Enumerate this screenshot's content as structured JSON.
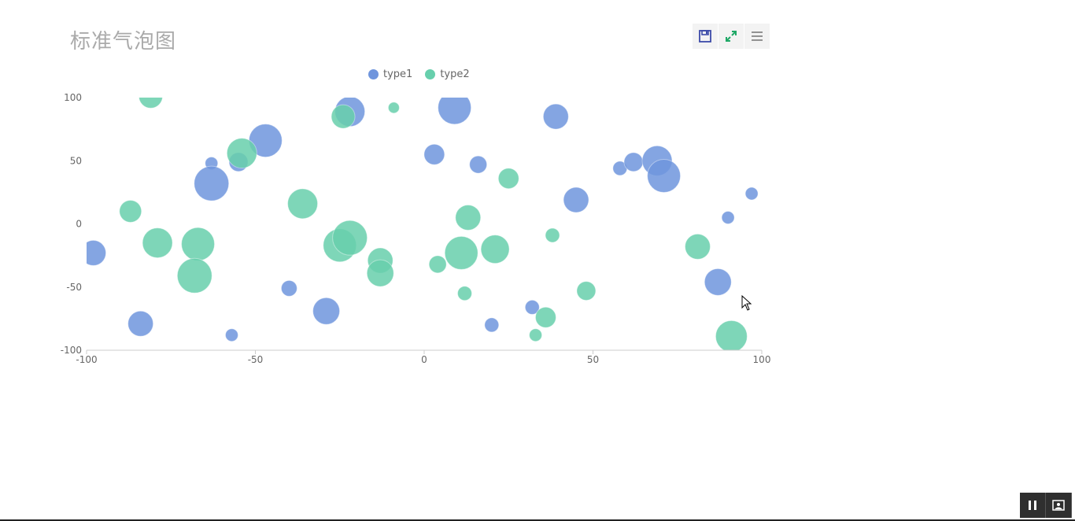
{
  "chart_data": {
    "type": "scatter",
    "title": "标准气泡图",
    "xlim": [
      -100,
      100
    ],
    "ylim": [
      -100,
      100
    ],
    "x_ticks": [
      "-100",
      "-50",
      "0",
      "50",
      "100"
    ],
    "y_ticks": [
      "100",
      "50",
      "0",
      "-50",
      "-100"
    ],
    "legend_position": "top-center",
    "grid": false,
    "series": [
      {
        "name": "type1",
        "color": "#6f95dd",
        "points": [
          {
            "x": -98,
            "y": -23,
            "size": 16
          },
          {
            "x": -84,
            "y": -79,
            "size": 16
          },
          {
            "x": -63,
            "y": 48,
            "size": 8
          },
          {
            "x": -63,
            "y": 32,
            "size": 22
          },
          {
            "x": -55,
            "y": 49,
            "size": 12
          },
          {
            "x": -47,
            "y": 66,
            "size": 21
          },
          {
            "x": -57,
            "y": -88,
            "size": 8
          },
          {
            "x": -40,
            "y": -51,
            "size": 10
          },
          {
            "x": -29,
            "y": -69,
            "size": 17
          },
          {
            "x": -22,
            "y": 89,
            "size": 19
          },
          {
            "x": 3,
            "y": 55,
            "size": 13
          },
          {
            "x": 9,
            "y": 92,
            "size": 21
          },
          {
            "x": 16,
            "y": 47,
            "size": 11
          },
          {
            "x": 20,
            "y": -80,
            "size": 9
          },
          {
            "x": 32,
            "y": -66,
            "size": 9
          },
          {
            "x": 39,
            "y": 85,
            "size": 16
          },
          {
            "x": 45,
            "y": 19,
            "size": 16
          },
          {
            "x": 58,
            "y": 44,
            "size": 9
          },
          {
            "x": 62,
            "y": 49,
            "size": 12
          },
          {
            "x": 69,
            "y": 50,
            "size": 19
          },
          {
            "x": 71,
            "y": 38,
            "size": 21
          },
          {
            "x": 87,
            "y": -46,
            "size": 17
          },
          {
            "x": 90,
            "y": 5,
            "size": 8
          },
          {
            "x": 97,
            "y": 24,
            "size": 8
          }
        ]
      },
      {
        "name": "type2",
        "color": "#67cfac",
        "points": [
          {
            "x": -81,
            "y": 101,
            "size": 15
          },
          {
            "x": -87,
            "y": 10,
            "size": 14
          },
          {
            "x": -79,
            "y": -15,
            "size": 19
          },
          {
            "x": -67,
            "y": -16,
            "size": 21
          },
          {
            "x": -68,
            "y": -41,
            "size": 22
          },
          {
            "x": -54,
            "y": 56,
            "size": 19
          },
          {
            "x": -36,
            "y": 16,
            "size": 19
          },
          {
            "x": -24,
            "y": 85,
            "size": 15
          },
          {
            "x": -25,
            "y": -17,
            "size": 21
          },
          {
            "x": -22,
            "y": -11,
            "size": 22
          },
          {
            "x": -13,
            "y": -29,
            "size": 16
          },
          {
            "x": -13,
            "y": -39,
            "size": 17
          },
          {
            "x": -9,
            "y": 92,
            "size": 7
          },
          {
            "x": 4,
            "y": -32,
            "size": 11
          },
          {
            "x": 11,
            "y": -23,
            "size": 21
          },
          {
            "x": 13,
            "y": 5,
            "size": 16
          },
          {
            "x": 12,
            "y": -55,
            "size": 9
          },
          {
            "x": 21,
            "y": -20,
            "size": 18
          },
          {
            "x": 25,
            "y": 36,
            "size": 13
          },
          {
            "x": 33,
            "y": -88,
            "size": 8
          },
          {
            "x": 36,
            "y": -74,
            "size": 13
          },
          {
            "x": 38,
            "y": -9,
            "size": 9
          },
          {
            "x": 48,
            "y": -53,
            "size": 12
          },
          {
            "x": 81,
            "y": -18,
            "size": 16
          },
          {
            "x": 91,
            "y": -89,
            "size": 20
          }
        ]
      }
    ]
  },
  "toolbox": {
    "items": [
      {
        "name": "save-image-icon",
        "color": "#3b4aa8"
      },
      {
        "name": "fullscreen-expand-icon",
        "color": "#1fa866"
      },
      {
        "name": "menu-icon",
        "color": "#888888"
      }
    ]
  },
  "player": {
    "items": [
      "pause-icon",
      "picture-icon"
    ]
  }
}
